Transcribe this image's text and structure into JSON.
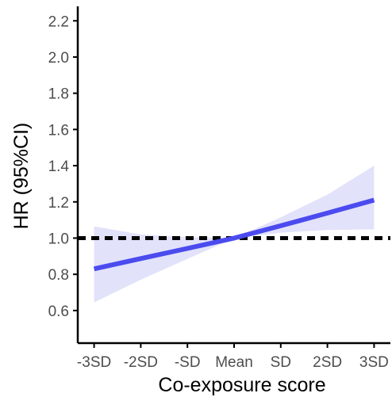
{
  "chart_data": {
    "type": "line",
    "title": "",
    "xlabel": "Co-exposure score",
    "ylabel": "HR (95%CI)",
    "categories": [
      "-3SD",
      "-2SD",
      "-SD",
      "Mean",
      "SD",
      "2SD",
      "3SD"
    ],
    "x": [
      -3,
      -2,
      -1,
      0,
      1,
      2,
      3
    ],
    "xlim": [
      -3.35,
      3.35
    ],
    "ylim": [
      0.42,
      2.28
    ],
    "yticks": [
      0.6,
      0.8,
      1.0,
      1.2,
      1.4,
      1.6,
      1.8,
      2.0,
      2.2
    ],
    "ytick_labels": [
      "0.6",
      "0.8",
      "1.0",
      "1.2",
      "1.4",
      "1.6",
      "1.8",
      "2.0",
      "2.2"
    ],
    "series": [
      {
        "values": [
          0.83,
          0.887,
          0.943,
          1.0,
          1.068,
          1.138,
          1.21
        ],
        "lower": [
          0.645,
          0.77,
          0.885,
          1.0,
          1.03,
          1.045,
          1.048
        ],
        "upper": [
          1.065,
          1.02,
          1.005,
          1.0,
          1.115,
          1.24,
          1.4
        ]
      }
    ],
    "reference_line": 1.0,
    "grid": false,
    "colors": {
      "line": "#4b4bef",
      "band": "#e2e2fb",
      "reference": "#000000",
      "axis": "#000000",
      "tick_text": "#4d4d4d"
    }
  }
}
